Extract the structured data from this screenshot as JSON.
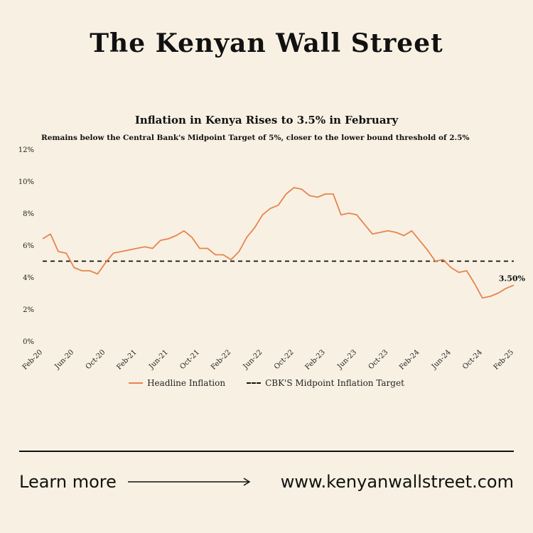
{
  "masthead": "The Kenyan Wall Street",
  "footer": {
    "learn_more": "Learn more",
    "arrow_icon": "arrow-right-icon",
    "url": "www.kenyanwallstreet.com"
  },
  "colors": {
    "background": "#f8f1e3",
    "series": "#e8834f",
    "target": "#111111"
  },
  "chart_data": {
    "type": "line",
    "title": "Inflation in Kenya Rises to 3.5% in February",
    "subtitle": "Remains below the Central Bank's Midpoint Target of 5%, closer to the lower bound threshold of 2.5%",
    "xlabel": "",
    "ylabel": "",
    "ylim": [
      0,
      12
    ],
    "yticks": [
      "0%",
      "2%",
      "4%",
      "6%",
      "8%",
      "10%",
      "12%"
    ],
    "xticks": [
      "Feb-20",
      "Jun-20",
      "Oct-20",
      "Feb-21",
      "Jun-21",
      "Oct-21",
      "Feb-22",
      "Jun-22",
      "Oct-22",
      "Feb-23",
      "Jun-23",
      "Oct-23",
      "Feb-24",
      "Jun-24",
      "Oct-24",
      "Feb-25"
    ],
    "grid": false,
    "legend_position": "bottom",
    "annotation": "3.50%",
    "series": [
      {
        "name": "Headline Inflation",
        "style": "solid",
        "x": [
          "Feb-20",
          "Mar-20",
          "Apr-20",
          "May-20",
          "Jun-20",
          "Jul-20",
          "Aug-20",
          "Sep-20",
          "Oct-20",
          "Nov-20",
          "Dec-20",
          "Jan-21",
          "Feb-21",
          "Mar-21",
          "Apr-21",
          "May-21",
          "Jun-21",
          "Jul-21",
          "Aug-21",
          "Sep-21",
          "Oct-21",
          "Nov-21",
          "Dec-21",
          "Jan-22",
          "Feb-22",
          "Mar-22",
          "Apr-22",
          "May-22",
          "Jun-22",
          "Jul-22",
          "Aug-22",
          "Sep-22",
          "Oct-22",
          "Nov-22",
          "Dec-22",
          "Jan-23",
          "Feb-23",
          "Mar-23",
          "Apr-23",
          "May-23",
          "Jun-23",
          "Jul-23",
          "Aug-23",
          "Sep-23",
          "Oct-23",
          "Nov-23",
          "Dec-23",
          "Jan-24",
          "Feb-24",
          "Mar-24",
          "Apr-24",
          "May-24",
          "Jun-24",
          "Jul-24",
          "Aug-24",
          "Sep-24",
          "Oct-24",
          "Nov-24",
          "Dec-24",
          "Jan-25",
          "Feb-25"
        ],
        "values": [
          6.4,
          6.7,
          5.6,
          5.5,
          4.6,
          4.4,
          4.4,
          4.2,
          4.9,
          5.5,
          5.6,
          5.7,
          5.8,
          5.9,
          5.8,
          6.3,
          6.4,
          6.6,
          6.9,
          6.5,
          5.8,
          5.8,
          5.4,
          5.4,
          5.1,
          5.6,
          6.5,
          7.1,
          7.9,
          8.3,
          8.5,
          9.2,
          9.6,
          9.5,
          9.1,
          9.0,
          9.2,
          9.2,
          7.9,
          8.0,
          7.9,
          7.3,
          6.7,
          6.8,
          6.9,
          6.8,
          6.6,
          6.9,
          6.3,
          5.7,
          5.0,
          5.1,
          4.6,
          4.3,
          4.4,
          3.6,
          2.7,
          2.8,
          3.0,
          3.3,
          3.5
        ]
      },
      {
        "name": "CBK'S Midpoint Inflation Target",
        "style": "dashed",
        "x": [
          "Feb-20",
          "Feb-25"
        ],
        "values": [
          5,
          5
        ]
      }
    ]
  }
}
